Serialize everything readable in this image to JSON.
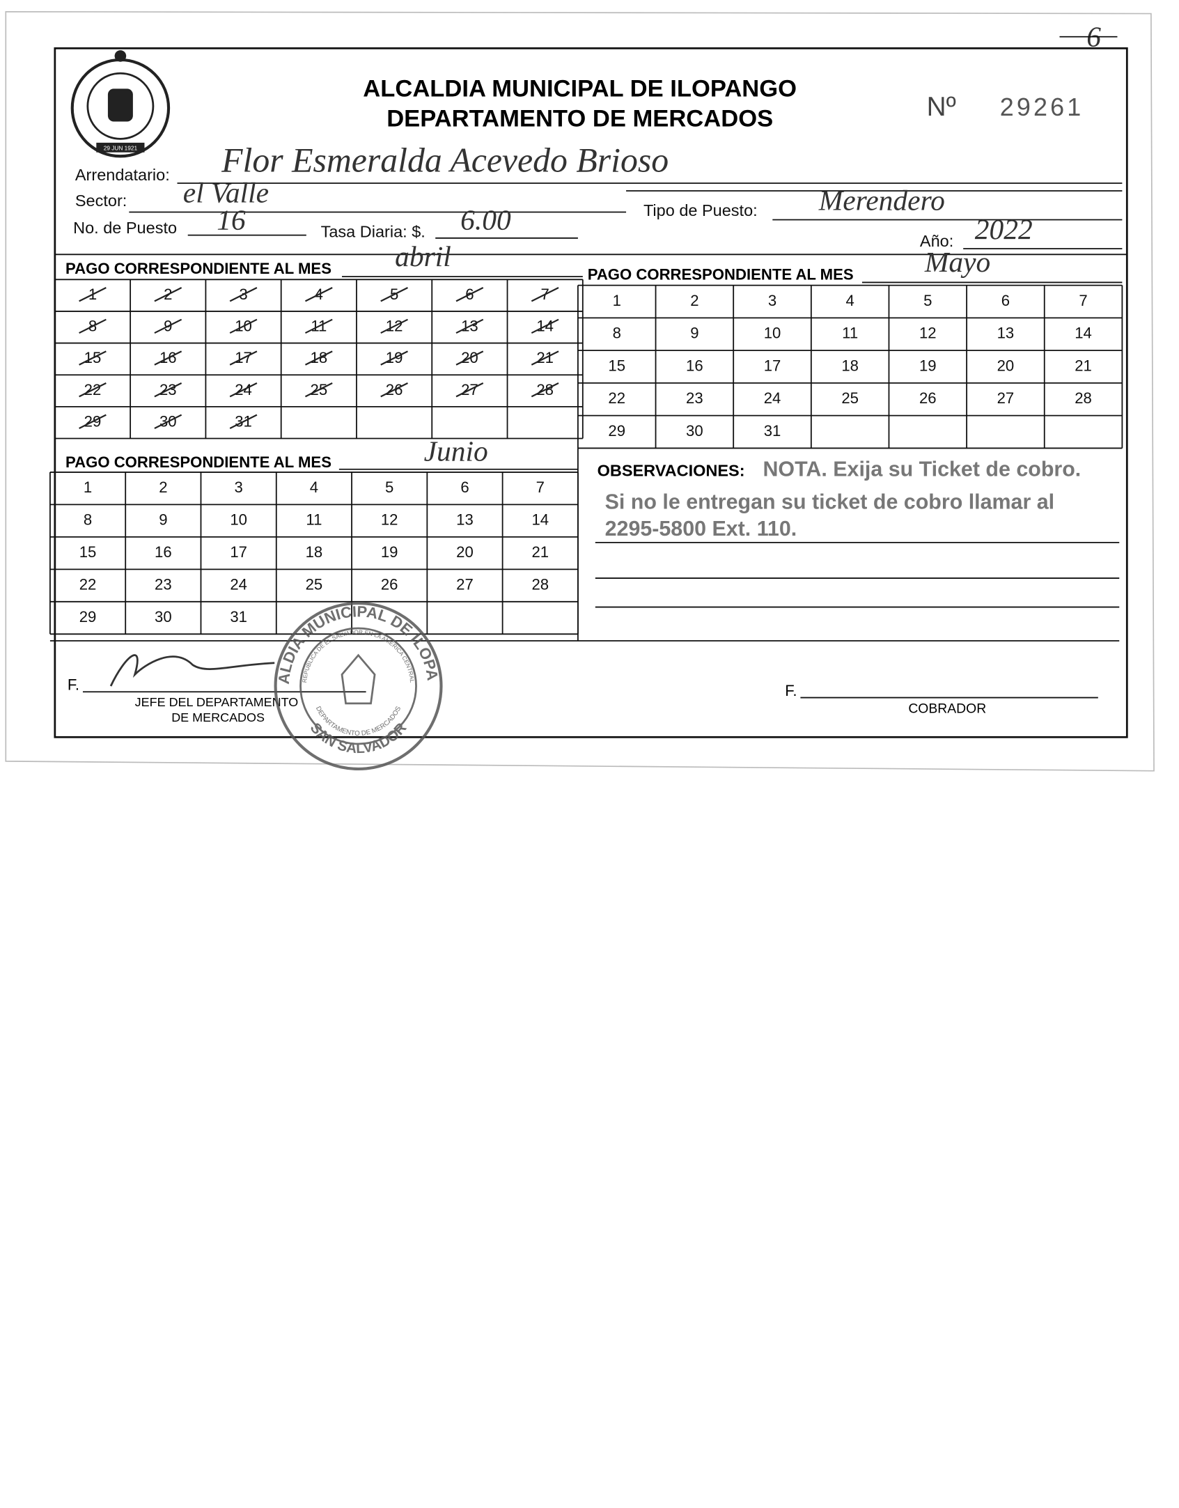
{
  "page_mark": "6",
  "header": {
    "title_line1": "ALCALDIA MUNICIPAL DE ILOPANGO",
    "title_line2": "DEPARTAMENTO DE MERCADOS",
    "number_label": "Nº",
    "number": "29261",
    "logo_date": "29 JUN 1921"
  },
  "fields": {
    "arrendatario": {
      "label": "Arrendatario:",
      "value": "Flor Esmeralda Acevedo Brioso"
    },
    "sector": {
      "label": "Sector:",
      "value": "el Valle"
    },
    "tipo_de_puesto": {
      "label": "Tipo de Puesto:",
      "value": "Merendero"
    },
    "no_de_puesto": {
      "label": "No. de Puesto",
      "value": "16"
    },
    "tasa_diaria": {
      "label": "Tasa Diaria: $.",
      "value": "6.00"
    },
    "anio": {
      "label": "Año:",
      "value": "2022"
    }
  },
  "payment_months": [
    {
      "label": "PAGO CORRESPONDIENTE AL MES",
      "month": "abril",
      "crossed": true,
      "days": [
        1,
        2,
        3,
        4,
        5,
        6,
        7,
        8,
        9,
        10,
        11,
        12,
        13,
        14,
        15,
        16,
        17,
        18,
        19,
        20,
        21,
        22,
        23,
        24,
        25,
        26,
        27,
        28,
        29,
        30,
        31
      ]
    },
    {
      "label": "PAGO CORRESPONDIENTE AL MES",
      "month": "Mayo",
      "crossed": false,
      "days": [
        1,
        2,
        3,
        4,
        5,
        6,
        7,
        8,
        9,
        10,
        11,
        12,
        13,
        14,
        15,
        16,
        17,
        18,
        19,
        20,
        21,
        22,
        23,
        24,
        25,
        26,
        27,
        28,
        29,
        30,
        31
      ]
    },
    {
      "label": "PAGO CORRESPONDIENTE AL MES",
      "month": "Junio",
      "crossed": false,
      "days": [
        1,
        2,
        3,
        4,
        5,
        6,
        7,
        8,
        9,
        10,
        11,
        12,
        13,
        14,
        15,
        16,
        17,
        18,
        19,
        20,
        21,
        22,
        23,
        24,
        25,
        26,
        27,
        28,
        29,
        30,
        31
      ]
    }
  ],
  "observaciones": {
    "label": "OBSERVACIONES:",
    "lines": [
      "NOTA. Exija su Ticket de cobro.",
      "Si no le entregan su ticket de cobro llamar al",
      "2295-5800 Ext. 110."
    ]
  },
  "signatures": {
    "left": {
      "prefix": "F.",
      "title_lines": [
        "JEFE DEL DEPARTAMENTO",
        "DE MERCADOS"
      ]
    },
    "right": {
      "prefix": "F.",
      "title": "COBRADOR"
    }
  },
  "stamp": {
    "outer_top": "ALCALDIA MUNICIPAL DE ILOPANGO",
    "outer_bottom": "SAN SALVADOR",
    "inner_top": "REPUBLICA DE EL SALVADOR EN LA AMERICA CENTRAL",
    "inner_bottom": "DEPARTAMENTO DE MERCADOS"
  }
}
